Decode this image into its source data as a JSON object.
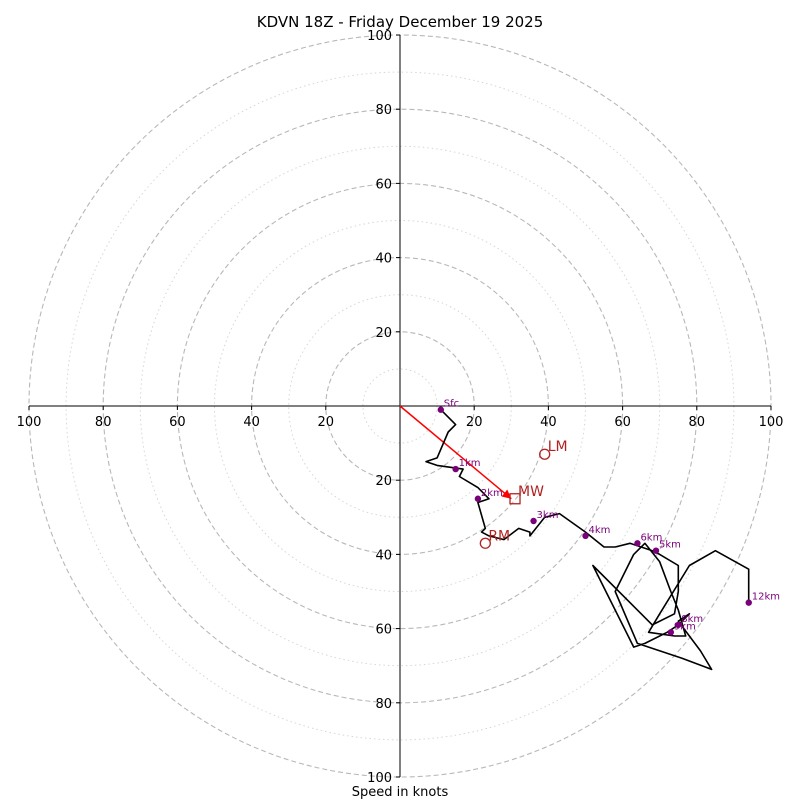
{
  "chart_data": {
    "type": "line",
    "title": "KDVN 18Z - Friday December 19 2025",
    "xlabel": "Speed in knots",
    "ylabel": "",
    "xlim": [
      -100,
      100
    ],
    "ylim": [
      -100,
      100
    ],
    "ring_major": [
      20,
      40,
      60,
      80,
      100
    ],
    "ring_minor": [
      10,
      30,
      50,
      70,
      90
    ],
    "x_ticks": [
      {
        "v": -100,
        "label": "100"
      },
      {
        "v": -80,
        "label": "80"
      },
      {
        "v": -60,
        "label": "60"
      },
      {
        "v": -40,
        "label": "40"
      },
      {
        "v": -20,
        "label": "20"
      },
      {
        "v": 20,
        "label": "20"
      },
      {
        "v": 40,
        "label": "40"
      },
      {
        "v": 60,
        "label": "60"
      },
      {
        "v": 80,
        "label": "80"
      },
      {
        "v": 100,
        "label": "100"
      }
    ],
    "y_ticks": [
      {
        "v": 100,
        "label": "100"
      },
      {
        "v": 80,
        "label": "80"
      },
      {
        "v": 60,
        "label": "60"
      },
      {
        "v": 40,
        "label": "40"
      },
      {
        "v": 20,
        "label": "20"
      },
      {
        "v": -20,
        "label": "20"
      },
      {
        "v": -40,
        "label": "40"
      },
      {
        "v": -60,
        "label": "60"
      },
      {
        "v": -80,
        "label": "80"
      },
      {
        "v": -100,
        "label": "100"
      }
    ],
    "trace": {
      "name": "hodograph",
      "color": "#000000",
      "x": [
        11,
        14,
        15,
        13,
        10,
        7,
        10,
        17,
        17,
        16,
        21,
        22,
        24,
        24,
        21,
        23,
        22,
        24,
        28,
        32,
        35,
        35,
        39,
        43,
        50,
        55,
        58,
        62,
        68,
        70,
        75,
        75,
        74,
        68,
        52,
        63,
        66,
        72,
        75,
        78,
        75,
        81,
        84,
        76,
        64,
        58,
        63,
        66,
        70,
        73,
        75,
        77,
        74,
        67,
        70,
        78,
        85,
        94,
        94
      ],
      "y": [
        -1,
        -4,
        -5,
        -7,
        -14,
        -15,
        -16,
        -17,
        -17,
        -19,
        -22,
        -23,
        -25,
        -25,
        -26,
        -33,
        -34,
        -35,
        -36,
        -33,
        -34,
        -35,
        -30,
        -29,
        -34,
        -38,
        -38,
        -37,
        -39,
        -40,
        -43,
        -50,
        -56,
        -59,
        -43,
        -65,
        -64,
        -61,
        -59,
        -56,
        -58,
        -66,
        -71,
        -68,
        -64,
        -50,
        -40,
        -37,
        -42,
        -50,
        -55,
        -62,
        -62,
        -61,
        -56,
        -43,
        -39,
        -44,
        -53
      ]
    },
    "height_markers": [
      {
        "label": "Sfc",
        "x": 11,
        "y": -1
      },
      {
        "label": "1km",
        "x": 15,
        "y": -17
      },
      {
        "label": "2km",
        "x": 21,
        "y": -25
      },
      {
        "label": "3km",
        "x": 36,
        "y": -31
      },
      {
        "label": "4km",
        "x": 50,
        "y": -35
      },
      {
        "label": "5km",
        "x": 69,
        "y": -39
      },
      {
        "label": "6km",
        "x": 64,
        "y": -37
      },
      {
        "label": "8km",
        "x": 75,
        "y": -59
      },
      {
        "label": "9km",
        "x": 73,
        "y": -61
      },
      {
        "label": "12km",
        "x": 94,
        "y": -53
      }
    ],
    "marker_color": "#7a007a",
    "motion_points": [
      {
        "label": "LM",
        "x": 39,
        "y": -13,
        "shape": "circle"
      },
      {
        "label": "MW",
        "x": 31,
        "y": -25,
        "shape": "square"
      },
      {
        "label": "RM",
        "x": 23,
        "y": -37,
        "shape": "circle"
      }
    ],
    "motion_color": "#b22222",
    "storm_vector": {
      "from": [
        0,
        0
      ],
      "to": [
        30,
        -25
      ],
      "color": "#ff0000"
    }
  }
}
